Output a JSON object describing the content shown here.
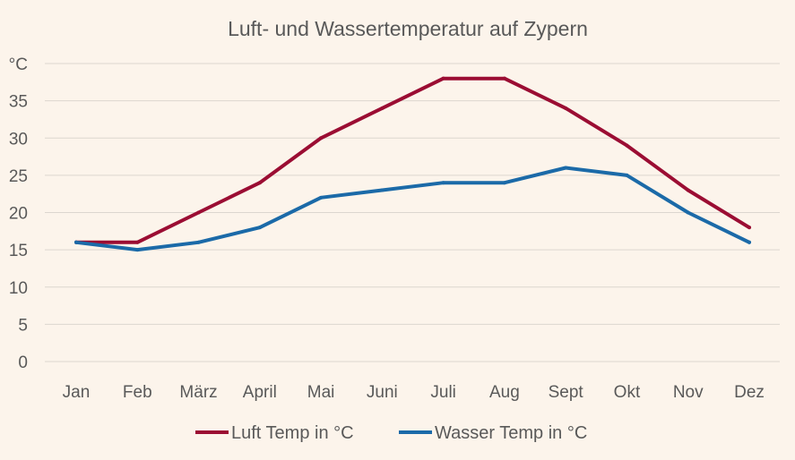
{
  "chart_data": {
    "type": "line",
    "title": "Luft- und Wassertemperatur auf Zypern",
    "xlabel": "",
    "ylabel": "°C",
    "categories": [
      "Jan",
      "Feb",
      "März",
      "April",
      "Mai",
      "Juni",
      "Juli",
      "Aug",
      "Sept",
      "Okt",
      "Nov",
      "Dez"
    ],
    "y_ticks": [
      "0",
      "5",
      "10",
      "15",
      "20",
      "25",
      "30",
      "35",
      "°C"
    ],
    "y_tick_values": [
      0,
      5,
      10,
      15,
      20,
      25,
      30,
      35,
      40
    ],
    "ylim": [
      0,
      40
    ],
    "grid": true,
    "legend_position": "bottom",
    "series": [
      {
        "name": "Luft Temp in °C",
        "color": "#9b0d33",
        "values": [
          16,
          16,
          20,
          24,
          30,
          34,
          38,
          38,
          34,
          29,
          23,
          18
        ]
      },
      {
        "name": "Wasser Temp in °C",
        "color": "#1b6aa8",
        "values": [
          16,
          15,
          16,
          18,
          22,
          23,
          24,
          24,
          26,
          25,
          20,
          16
        ]
      }
    ]
  }
}
